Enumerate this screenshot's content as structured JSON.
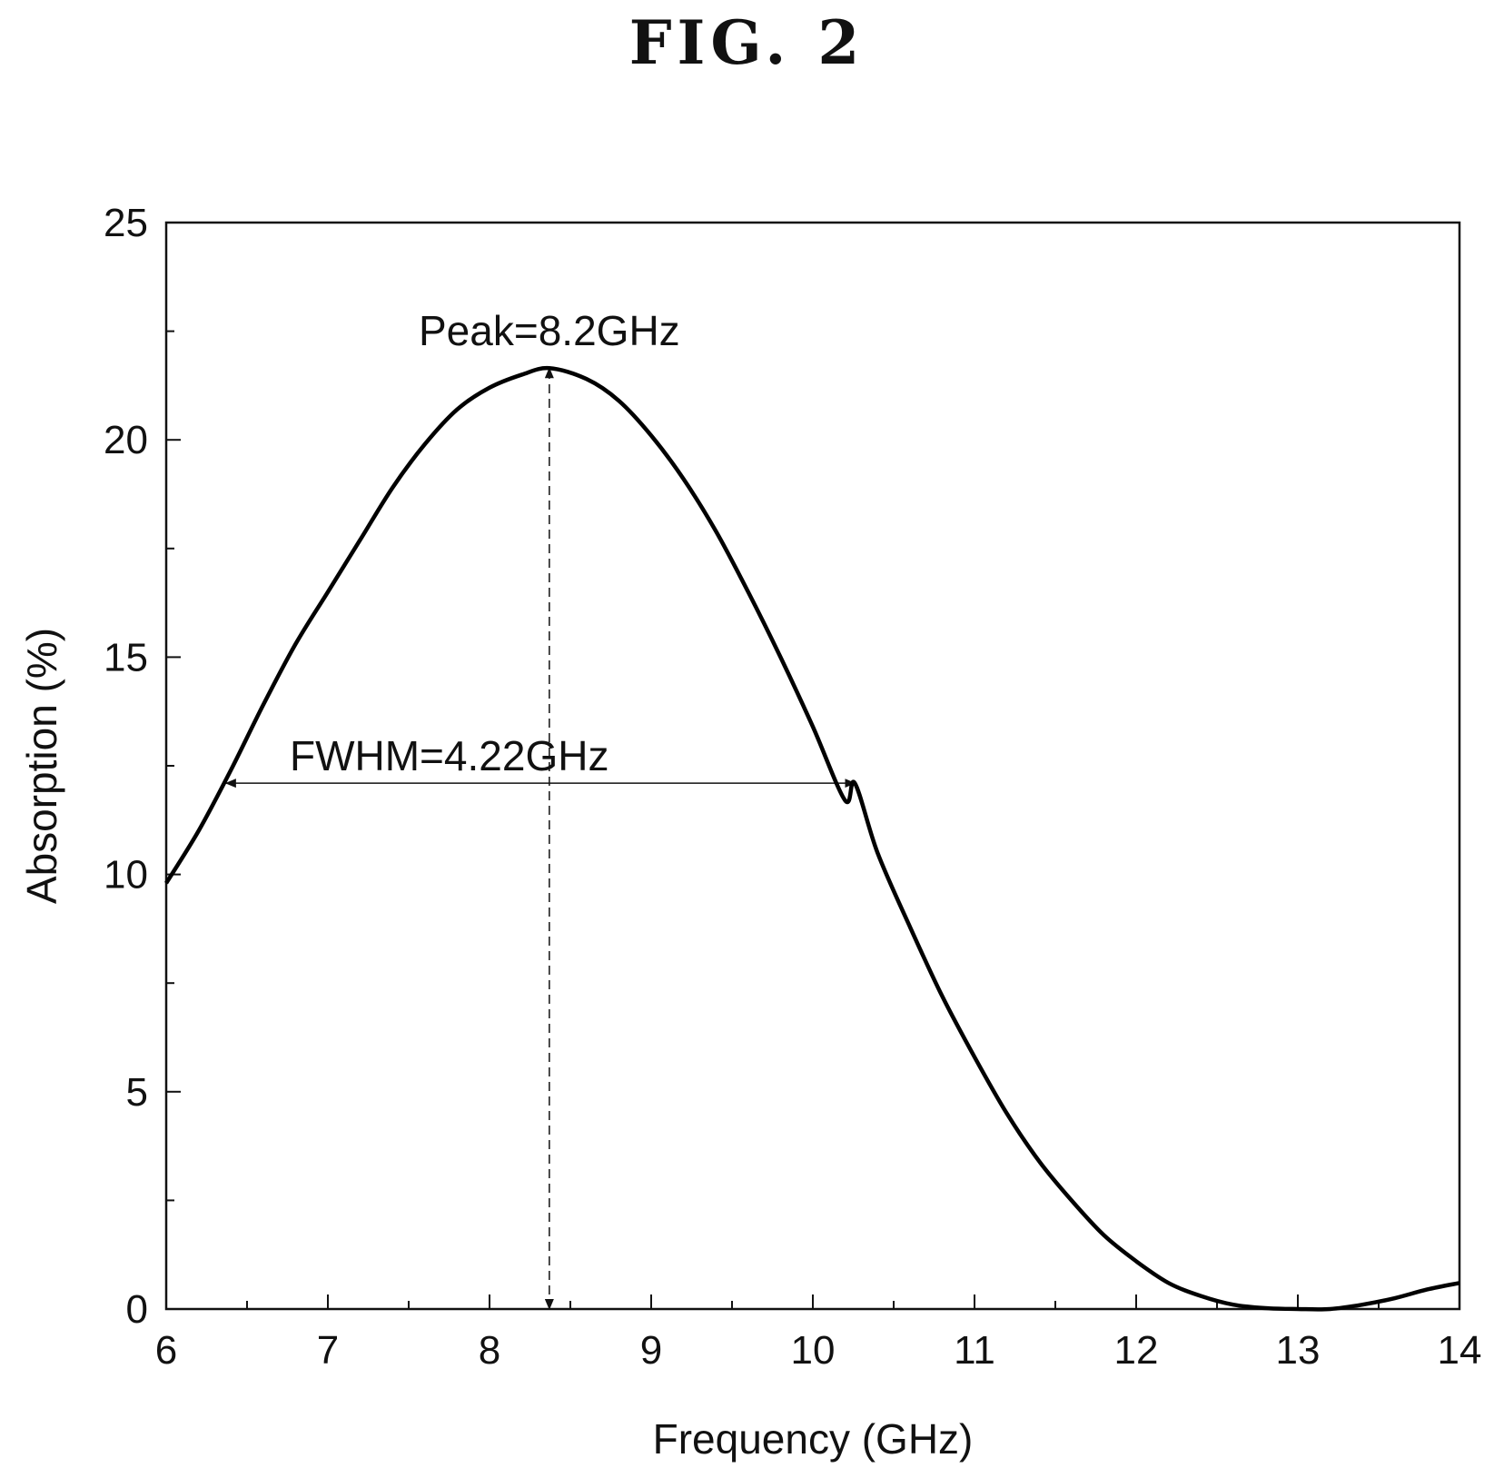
{
  "figure_title": "FIG. 2",
  "chart_data": {
    "type": "line",
    "xlabel": "Frequency (GHz)",
    "ylabel": "Absorption (%)",
    "xlim": [
      6,
      14
    ],
    "ylim": [
      0,
      25
    ],
    "x_ticks": [
      6,
      7,
      8,
      9,
      10,
      11,
      12,
      13,
      14
    ],
    "y_ticks": [
      0,
      5,
      10,
      15,
      20,
      25
    ],
    "x_minor_step": 0.5,
    "y_minor_step": 2.5,
    "grid": false,
    "series": [
      {
        "color": "#000000",
        "x": [
          6.0,
          6.2,
          6.4,
          6.6,
          6.8,
          7.0,
          7.2,
          7.4,
          7.6,
          7.8,
          8.0,
          8.2,
          8.37,
          8.6,
          8.8,
          9.0,
          9.2,
          9.4,
          9.6,
          9.8,
          10.0,
          10.2,
          10.26,
          10.4,
          10.6,
          10.8,
          11.0,
          11.2,
          11.4,
          11.6,
          11.8,
          12.0,
          12.2,
          12.4,
          12.6,
          12.8,
          13.0,
          13.2,
          13.4,
          13.6,
          13.8,
          14.0
        ],
        "y": [
          9.8,
          11.0,
          12.4,
          13.9,
          15.3,
          16.5,
          17.7,
          18.9,
          19.9,
          20.7,
          21.2,
          21.5,
          21.65,
          21.4,
          20.9,
          20.1,
          19.1,
          17.9,
          16.5,
          15.0,
          13.4,
          11.7,
          12.1,
          10.5,
          8.8,
          7.2,
          5.8,
          4.5,
          3.4,
          2.5,
          1.7,
          1.1,
          0.6,
          0.3,
          0.1,
          0.02,
          0.0,
          0.0,
          0.1,
          0.25,
          0.45,
          0.6
        ]
      }
    ],
    "annotations": [
      {
        "text": "Peak=8.2GHz",
        "type": "vertical-arrow",
        "x": 8.37,
        "y_from": 0,
        "y_to": 21.65
      },
      {
        "text": "FWHM=4.22GHz",
        "type": "horizontal-arrow",
        "y": 12.1,
        "x_from": 6.37,
        "x_to": 10.26
      }
    ]
  }
}
